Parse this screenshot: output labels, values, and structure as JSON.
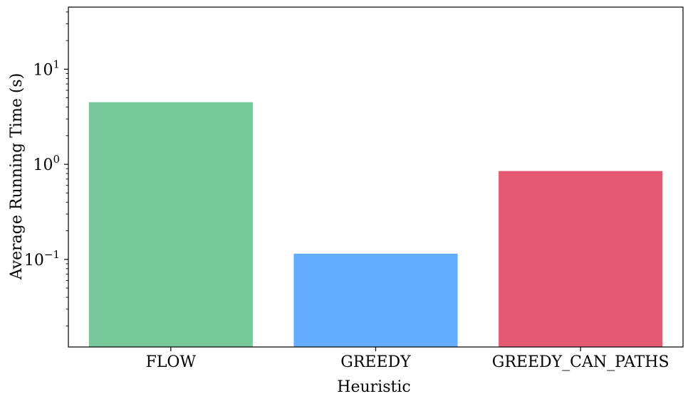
{
  "chart_data": {
    "type": "bar",
    "title": "",
    "xlabel": "Heuristic",
    "ylabel": "Average Running Time (s)",
    "yscale": "log",
    "ylim": [
      0.012,
      45
    ],
    "grid": false,
    "categories": [
      "FLOW",
      "GREEDY",
      "GREEDY_CAN_PATHS"
    ],
    "values": [
      4.5,
      0.115,
      0.85
    ],
    "colors": [
      "#77c99b",
      "#62aefd",
      "#e55a73"
    ],
    "yticks": [
      {
        "value": 0.1,
        "base": "10",
        "exp": "−1"
      },
      {
        "value": 1,
        "base": "10",
        "exp": "0"
      },
      {
        "value": 10,
        "base": "10",
        "exp": "1"
      }
    ]
  }
}
